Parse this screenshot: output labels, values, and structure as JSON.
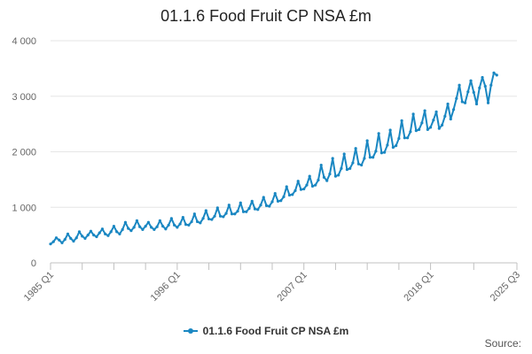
{
  "colors": {
    "series": "#1a87c2",
    "grid": "#e6e6e6",
    "axis": "#c0c0c0"
  },
  "source": "Source:",
  "chart_data": {
    "type": "line",
    "title": "01.1.6 Food Fruit CP NSA £m",
    "xlabel": "",
    "ylabel": "",
    "ylim": [
      0,
      4000
    ],
    "yticks": [
      0,
      1000,
      2000,
      3000,
      4000
    ],
    "ytick_labels": [
      "0",
      "1 000",
      "2 000",
      "3 000",
      "4 000"
    ],
    "xticks": [
      "1985 Q1",
      "1996 Q1",
      "2007 Q1",
      "2018 Q1",
      "2025 Q3"
    ],
    "start": "1985 Q1",
    "end": "2025 Q3",
    "grid": true,
    "legend": "bottom-center",
    "series": [
      {
        "name": "01.1.6 Food Fruit CP NSA £m",
        "color": "#1a87c2",
        "values": [
          340,
          380,
          450,
          410,
          360,
          420,
          520,
          440,
          390,
          450,
          560,
          480,
          440,
          500,
          570,
          500,
          470,
          540,
          610,
          520,
          490,
          560,
          660,
          560,
          520,
          600,
          730,
          620,
          580,
          640,
          760,
          650,
          600,
          660,
          730,
          640,
          600,
          650,
          760,
          660,
          610,
          680,
          800,
          680,
          640,
          700,
          820,
          690,
          680,
          740,
          880,
          740,
          720,
          800,
          940,
          790,
          780,
          840,
          990,
          840,
          830,
          890,
          1040,
          880,
          880,
          930,
          1080,
          920,
          920,
          980,
          1110,
          970,
          960,
          1040,
          1180,
          1030,
          1020,
          1100,
          1250,
          1110,
          1120,
          1190,
          1370,
          1220,
          1230,
          1300,
          1470,
          1320,
          1330,
          1400,
          1560,
          1380,
          1400,
          1490,
          1760,
          1540,
          1480,
          1600,
          1880,
          1560,
          1580,
          1700,
          1960,
          1680,
          1700,
          1800,
          2060,
          1780,
          1760,
          1880,
          2200,
          1900,
          1900,
          2010,
          2330,
          1980,
          1990,
          2120,
          2390,
          2080,
          2110,
          2240,
          2560,
          2250,
          2250,
          2360,
          2680,
          2380,
          2400,
          2520,
          2740,
          2400,
          2440,
          2570,
          2720,
          2420,
          2480,
          2640,
          2860,
          2590,
          2760,
          2960,
          3200,
          2900,
          2880,
          3080,
          3280,
          3070,
          2860,
          3150,
          3340,
          3180,
          2880,
          3200,
          3420,
          3380
        ]
      }
    ]
  }
}
